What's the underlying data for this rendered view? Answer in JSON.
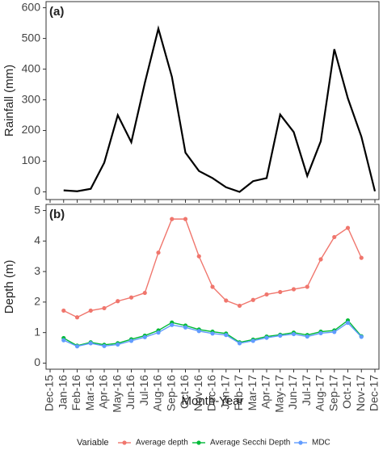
{
  "chart_data": [
    {
      "type": "line",
      "panel_label": "(a)",
      "y_label": "Rainfall (mm)",
      "ylim": [
        -25,
        620
      ],
      "yticks": [
        0,
        100,
        200,
        300,
        400,
        500,
        600
      ],
      "series": [
        {
          "name": "Rainfall",
          "color": "#000000",
          "values": [
            null,
            5,
            2,
            10,
            95,
            250,
            162,
            355,
            532,
            375,
            128,
            68,
            45,
            15,
            0,
            35,
            45,
            252,
            195,
            52,
            165,
            465,
            305,
            180,
            2
          ]
        }
      ]
    },
    {
      "type": "line",
      "panel_label": "(b)",
      "y_label": "Depth (m)",
      "x_label": "Month-Year",
      "categories": [
        "Dec-15",
        "Jan-16",
        "Feb-16",
        "Mar-16",
        "Apr-16",
        "May-16",
        "Jun-16",
        "Jul-16",
        "Aug-16",
        "Sep-16",
        "Oct-16",
        "Nov-16",
        "Dec-16",
        "Jan-17",
        "Feb-17",
        "Mar-17",
        "Apr-17",
        "May-17",
        "Jun-17",
        "Jul-17",
        "Aug-17",
        "Sep-17",
        "Oct-17",
        "Nov-17",
        "Dec-17"
      ],
      "ylim": [
        -0.2,
        5.2
      ],
      "yticks": [
        0,
        1,
        2,
        3,
        4,
        5
      ],
      "legend": {
        "title": "Variable",
        "position": "bottom"
      },
      "series": [
        {
          "name": "Average depth",
          "color": "#f0766d",
          "values": [
            null,
            1.72,
            1.5,
            1.72,
            1.8,
            2.03,
            2.15,
            2.3,
            3.62,
            4.72,
            4.72,
            3.5,
            2.5,
            2.05,
            1.88,
            2.07,
            2.25,
            2.33,
            2.42,
            2.5,
            3.4,
            4.13,
            4.43,
            3.45,
            null
          ]
        },
        {
          "name": "Average Secchi Depth",
          "color": "#00ba38",
          "values": [
            null,
            0.82,
            0.57,
            0.68,
            0.6,
            0.65,
            0.78,
            0.9,
            1.07,
            1.33,
            1.23,
            1.1,
            1.03,
            0.97,
            0.68,
            0.77,
            0.87,
            0.93,
            1.0,
            0.92,
            1.03,
            1.07,
            1.4,
            0.88,
            null
          ]
        },
        {
          "name": "MDC",
          "color": "#619cff",
          "values": [
            null,
            0.75,
            0.55,
            0.65,
            0.56,
            0.61,
            0.73,
            0.85,
            1.0,
            1.25,
            1.17,
            1.05,
            0.97,
            0.92,
            0.65,
            0.73,
            0.83,
            0.9,
            0.95,
            0.87,
            0.98,
            1.02,
            1.32,
            0.86,
            null
          ]
        }
      ]
    }
  ]
}
